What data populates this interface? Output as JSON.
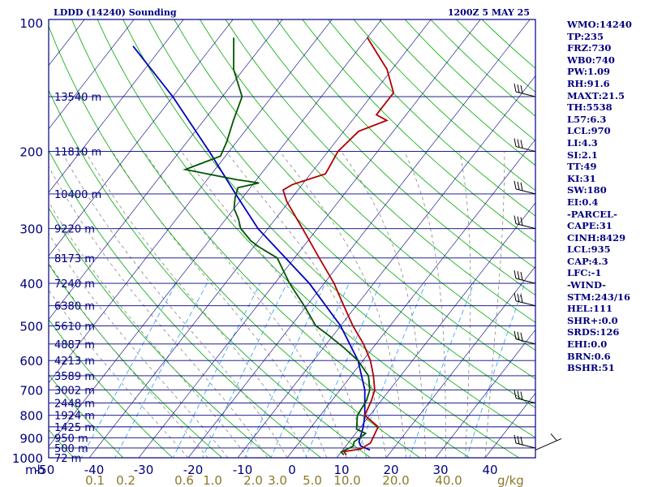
{
  "chart_data": {
    "type": "skew-t log-p sounding",
    "title": "LDDD (14240) Sounding",
    "valid_time": "1200Z  5 MAY 25",
    "pressure_levels_mb": [
      100,
      200,
      300,
      400,
      500,
      600,
      700,
      800,
      900,
      1000
    ],
    "pressure_axis_unit": "mb",
    "temperature_ticks_c": [
      -50,
      -40,
      -30,
      -20,
      -10,
      0,
      10,
      20,
      30,
      40
    ],
    "mixing_ratio_ticks": [
      "0.1",
      "0.2",
      "0.6",
      "1.0",
      "2.0",
      "3.0",
      "5.0",
      "10.0",
      "20.0",
      "40.0"
    ],
    "mixing_ratio_unit": "g/kg",
    "height_labels": [
      {
        "p": 150,
        "text": "13540 m"
      },
      {
        "p": 200,
        "text": "11810 m"
      },
      {
        "p": 250,
        "text": "10400 m"
      },
      {
        "p": 300,
        "text": "9220 m"
      },
      {
        "p": 350,
        "text": "8173 m"
      },
      {
        "p": 400,
        "text": "7240 m"
      },
      {
        "p": 450,
        "text": "6380 m"
      },
      {
        "p": 500,
        "text": "5610 m"
      },
      {
        "p": 550,
        "text": "4887 m"
      },
      {
        "p": 600,
        "text": "4213 m"
      },
      {
        "p": 650,
        "text": "3589 m"
      },
      {
        "p": 700,
        "text": "3002 m"
      },
      {
        "p": 750,
        "text": "2448 m"
      },
      {
        "p": 800,
        "text": "1924 m"
      },
      {
        "p": 850,
        "text": "1425 m"
      },
      {
        "p": 900,
        "text": "950 m"
      },
      {
        "p": 950,
        "text": "500 m"
      },
      {
        "p": 1000,
        "text": "72 m"
      }
    ],
    "temperature_profile": [
      {
        "p": 985,
        "t": 11.5
      },
      {
        "p": 968,
        "t": 10.5
      },
      {
        "p": 955,
        "t": 13.5
      },
      {
        "p": 925,
        "t": 14.5
      },
      {
        "p": 850,
        "t": 13.5
      },
      {
        "p": 800,
        "t": 9.0
      },
      {
        "p": 740,
        "t": 8.0
      },
      {
        "p": 700,
        "t": 7.0
      },
      {
        "p": 650,
        "t": 4.5
      },
      {
        "p": 600,
        "t": 1.5
      },
      {
        "p": 550,
        "t": -2.5
      },
      {
        "p": 500,
        "t": -7.5
      },
      {
        "p": 450,
        "t": -12.5
      },
      {
        "p": 400,
        "t": -18.0
      },
      {
        "p": 350,
        "t": -25.0
      },
      {
        "p": 300,
        "t": -33.0
      },
      {
        "p": 260,
        "t": -40.5
      },
      {
        "p": 245,
        "t": -43.0
      },
      {
        "p": 238,
        "t": -42.0
      },
      {
        "p": 225,
        "t": -37.0
      },
      {
        "p": 200,
        "t": -38.0
      },
      {
        "p": 180,
        "t": -37.0
      },
      {
        "p": 170,
        "t": -33.0
      },
      {
        "p": 165,
        "t": -36.0
      },
      {
        "p": 150,
        "t": -36.0
      },
      {
        "p": 147,
        "t": -36.0
      },
      {
        "p": 130,
        "t": -41.0
      },
      {
        "p": 110,
        "t": -50.0
      }
    ],
    "dewpoint_profile": [
      {
        "p": 985,
        "t": 11.0
      },
      {
        "p": 970,
        "t": 10.0
      },
      {
        "p": 940,
        "t": 11.5
      },
      {
        "p": 920,
        "t": 11.0
      },
      {
        "p": 900,
        "t": 11.5
      },
      {
        "p": 880,
        "t": 12.0
      },
      {
        "p": 860,
        "t": 9.5
      },
      {
        "p": 800,
        "t": 7.5
      },
      {
        "p": 740,
        "t": 7.0
      },
      {
        "p": 700,
        "t": 6.0
      },
      {
        "p": 650,
        "t": 3.5
      },
      {
        "p": 600,
        "t": -1.0
      },
      {
        "p": 560,
        "t": -6.0
      },
      {
        "p": 525,
        "t": -11.0
      },
      {
        "p": 500,
        "t": -15.0
      },
      {
        "p": 450,
        "t": -20.5
      },
      {
        "p": 400,
        "t": -27.0
      },
      {
        "p": 350,
        "t": -33.5
      },
      {
        "p": 330,
        "t": -39.0
      },
      {
        "p": 320,
        "t": -41.5
      },
      {
        "p": 300,
        "t": -45.5
      },
      {
        "p": 285,
        "t": -47.5
      },
      {
        "p": 270,
        "t": -50.0
      },
      {
        "p": 255,
        "t": -51.5
      },
      {
        "p": 242,
        "t": -52.5
      },
      {
        "p": 236,
        "t": -49.0
      },
      {
        "p": 232,
        "t": -54.0
      },
      {
        "p": 220,
        "t": -66.0
      },
      {
        "p": 205,
        "t": -61.0
      },
      {
        "p": 190,
        "t": -62.0
      },
      {
        "p": 170,
        "t": -64.0
      },
      {
        "p": 150,
        "t": -66.0
      },
      {
        "p": 130,
        "t": -72.0
      },
      {
        "p": 110,
        "t": -77.0
      }
    ],
    "parcel_path": [
      {
        "p": 960,
        "t": 15.5
      },
      {
        "p": 940,
        "t": 13.0
      },
      {
        "p": 920,
        "t": 12.0
      },
      {
        "p": 850,
        "t": 10.5
      },
      {
        "p": 800,
        "t": 9.0
      },
      {
        "p": 700,
        "t": 5.0
      },
      {
        "p": 600,
        "t": -1.0
      },
      {
        "p": 500,
        "t": -10.0
      },
      {
        "p": 400,
        "t": -23.0
      },
      {
        "p": 300,
        "t": -42.0
      },
      {
        "p": 250,
        "t": -52.0
      },
      {
        "p": 200,
        "t": -64.0
      },
      {
        "p": 150,
        "t": -80.0
      },
      {
        "p": 115,
        "t": -96.0
      }
    ],
    "wind_barbs_present": true
  },
  "stats": [
    "WMO:14240",
    "TP:235",
    "FRZ:730",
    "WB0:740",
    "PW:1.09",
    "RH:91.6",
    "MAXT:21.5",
    "TH:5538",
    "L57:6.3",
    "LCL:970",
    "LI:4.3",
    "SI:2.1",
    "TT:49",
    "KI:31",
    "SW:180",
    "EI:0.4",
    "-PARCEL-",
    "CAPE:31",
    "CINH:8429",
    "LCL:935",
    "CAP:4.3",
    "LFC:-1",
    "-WIND-",
    "STM:243/16",
    "HEL:111",
    "SHR+:0.0",
    "SRDS:126",
    "EHI:0.0",
    "BRN:0.6",
    "BSHR:51"
  ],
  "colors": {
    "frame": "#00007f",
    "isobars": "#00007f",
    "isotherms": "#00007f",
    "dry_adiabats": "#00aa00",
    "moist_adiabats": "#777777",
    "mixing_ratio": "#2a9df4",
    "temperature": "#b00000",
    "dewpoint": "#005500",
    "parcel": "#0000c0",
    "bottom_temp_labels": "#00007f",
    "bottom_mixing_labels": "#8a7a2a"
  }
}
